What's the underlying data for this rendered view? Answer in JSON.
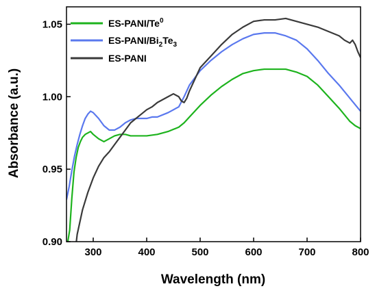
{
  "chart_data": {
    "type": "line",
    "xlabel": "Wavelength (nm)",
    "ylabel": "Absorbance (a.u.)",
    "xlim": [
      250,
      800
    ],
    "ylim": [
      0.9,
      1.062
    ],
    "xticks": [
      "300",
      "400",
      "500",
      "600",
      "700",
      "800"
    ],
    "yticks": [
      "0.90",
      "0.95",
      "1.00",
      "1.05"
    ],
    "legend_position": "top-left",
    "grid": false,
    "series": [
      {
        "name": "ES-PANI/Te",
        "name_sup": "0",
        "color": "#1db31d",
        "x": [
          252,
          256,
          260,
          264,
          268,
          272,
          276,
          280,
          285,
          290,
          295,
          300,
          310,
          320,
          330,
          340,
          350,
          360,
          370,
          380,
          390,
          400,
          420,
          440,
          460,
          470,
          480,
          500,
          520,
          540,
          560,
          580,
          600,
          620,
          640,
          660,
          680,
          700,
          720,
          740,
          760,
          780,
          790,
          800
        ],
        "y": [
          0.899,
          0.908,
          0.93,
          0.948,
          0.958,
          0.965,
          0.969,
          0.972,
          0.974,
          0.975,
          0.976,
          0.974,
          0.971,
          0.969,
          0.971,
          0.973,
          0.974,
          0.974,
          0.973,
          0.973,
          0.973,
          0.973,
          0.974,
          0.976,
          0.979,
          0.982,
          0.986,
          0.994,
          1.001,
          1.007,
          1.012,
          1.016,
          1.018,
          1.019,
          1.019,
          1.019,
          1.017,
          1.014,
          1.008,
          1.0,
          0.992,
          0.983,
          0.98,
          0.978
        ]
      },
      {
        "name": "ES-PANI/Bi",
        "name_sub": "2",
        "name_mid": "Te",
        "name_sub2": "3",
        "color": "#5a78ee",
        "x": [
          250,
          255,
          260,
          265,
          270,
          275,
          280,
          285,
          290,
          295,
          300,
          310,
          320,
          330,
          340,
          350,
          360,
          370,
          380,
          390,
          400,
          410,
          420,
          440,
          460,
          470,
          480,
          500,
          520,
          540,
          560,
          580,
          600,
          620,
          640,
          660,
          680,
          700,
          720,
          740,
          760,
          780,
          800
        ],
        "y": [
          0.929,
          0.938,
          0.949,
          0.959,
          0.967,
          0.974,
          0.98,
          0.985,
          0.988,
          0.99,
          0.989,
          0.985,
          0.98,
          0.977,
          0.977,
          0.979,
          0.982,
          0.984,
          0.985,
          0.985,
          0.985,
          0.986,
          0.986,
          0.989,
          0.993,
          1.0,
          1.008,
          1.018,
          1.025,
          1.031,
          1.036,
          1.04,
          1.043,
          1.044,
          1.044,
          1.042,
          1.039,
          1.033,
          1.025,
          1.016,
          1.008,
          0.999,
          0.99
        ]
      },
      {
        "name": "ES-PANI",
        "color": "#3a3a3a",
        "x": [
          265,
          270,
          280,
          290,
          300,
          310,
          320,
          330,
          340,
          350,
          360,
          370,
          380,
          390,
          400,
          410,
          420,
          430,
          440,
          450,
          460,
          465,
          470,
          475,
          480,
          490,
          500,
          520,
          540,
          560,
          580,
          600,
          620,
          640,
          660,
          680,
          700,
          720,
          740,
          760,
          770,
          780,
          785,
          790,
          795,
          800
        ],
        "y": [
          0.889,
          0.905,
          0.922,
          0.934,
          0.944,
          0.952,
          0.958,
          0.962,
          0.967,
          0.972,
          0.977,
          0.982,
          0.985,
          0.988,
          0.991,
          0.993,
          0.996,
          0.998,
          1.0,
          1.002,
          1.0,
          0.997,
          0.996,
          0.999,
          1.004,
          1.012,
          1.02,
          1.028,
          1.036,
          1.043,
          1.048,
          1.052,
          1.053,
          1.053,
          1.054,
          1.052,
          1.05,
          1.048,
          1.045,
          1.042,
          1.039,
          1.037,
          1.039,
          1.036,
          1.031,
          1.027
        ]
      }
    ]
  }
}
